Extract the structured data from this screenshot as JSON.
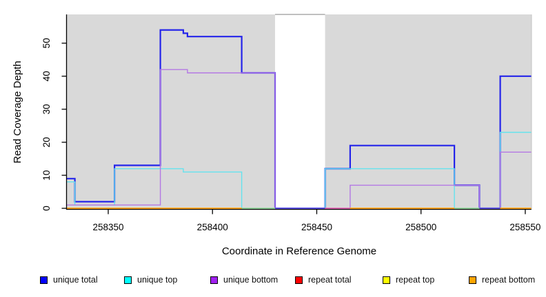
{
  "chart": {
    "y_axis_label": "Read Coverage Depth",
    "x_axis_label": "Coordinate in Reference Genome"
  },
  "chart_data": {
    "type": "line",
    "subtype": "step-post",
    "title": "",
    "xlabel": "Coordinate in Reference Genome",
    "ylabel": "Read Coverage Depth",
    "xlim": [
      258330,
      258553
    ],
    "ylim": [
      0,
      58.7
    ],
    "grid": false,
    "legend_position": "bottom",
    "x_ticks": [
      258350,
      258400,
      258450,
      258500,
      258550
    ],
    "x_tick_labels": [
      "258350",
      "258400",
      "258450",
      "258500",
      "258550"
    ],
    "y_ticks": [
      0,
      10,
      20,
      30,
      40,
      50
    ],
    "y_tick_labels": [
      "0",
      "10",
      "20",
      "30",
      "40",
      "50"
    ],
    "background_bands": [
      {
        "x1": 258330,
        "x2": 258430,
        "color": "#D9D9D9"
      },
      {
        "x1": 258430,
        "x2": 258454,
        "color": "#FFFFFF"
      },
      {
        "x1": 258454,
        "x2": 258553,
        "color": "#D9D9D9"
      }
    ],
    "band_top_border_color": "#999999",
    "series": [
      {
        "name": "unique total",
        "line_color": "#2424EA",
        "line_width": 2.2,
        "points": [
          [
            258330,
            9
          ],
          [
            258334,
            2
          ],
          [
            258353,
            13
          ],
          [
            258375,
            54
          ],
          [
            258386,
            53
          ],
          [
            258388,
            52
          ],
          [
            258414,
            41
          ],
          [
            258430,
            0
          ],
          [
            258454,
            12
          ],
          [
            258466,
            19
          ],
          [
            258516,
            7
          ],
          [
            258528,
            0
          ],
          [
            258538,
            40
          ],
          [
            258553,
            40
          ]
        ]
      },
      {
        "name": "unique top",
        "line_color": "#63E3EE",
        "line_width": 1.4,
        "points": [
          [
            258330,
            8
          ],
          [
            258334,
            1
          ],
          [
            258353,
            12
          ],
          [
            258386,
            11
          ],
          [
            258414,
            0
          ],
          [
            258454,
            12
          ],
          [
            258516,
            0
          ],
          [
            258538,
            23
          ],
          [
            258553,
            23
          ]
        ]
      },
      {
        "name": "unique bottom",
        "line_color": "#B478E4",
        "line_width": 1.4,
        "points": [
          [
            258330,
            1
          ],
          [
            258375,
            42
          ],
          [
            258388,
            41
          ],
          [
            258430,
            0
          ],
          [
            258466,
            7
          ],
          [
            258528,
            0
          ],
          [
            258538,
            17
          ],
          [
            258553,
            17
          ]
        ]
      },
      {
        "name": "repeat total",
        "line_color": "#E00000",
        "line_width": 1.4,
        "points": [
          [
            258330,
            0
          ],
          [
            258553,
            0
          ]
        ]
      },
      {
        "name": "repeat top",
        "line_color": "#FFFF00",
        "line_width": 1.4,
        "points": [
          [
            258330,
            0
          ],
          [
            258553,
            0
          ]
        ]
      },
      {
        "name": "repeat bottom",
        "line_color": "#FFA500",
        "line_width": 2,
        "points": [
          [
            258330,
            0
          ],
          [
            258553,
            0
          ]
        ]
      }
    ],
    "baseline_segments": [
      {
        "x1": 258330,
        "x2": 258414,
        "color": "#FFA500"
      },
      {
        "x1": 258414,
        "x2": 258430,
        "color": "#96D8A0"
      },
      {
        "x1": 258430,
        "x2": 258454,
        "color": "#5A50E6"
      },
      {
        "x1": 258454,
        "x2": 258466,
        "color": "#E06AB4"
      },
      {
        "x1": 258466,
        "x2": 258516,
        "color": "#FFA500"
      },
      {
        "x1": 258516,
        "x2": 258528,
        "color": "#96D8A0"
      },
      {
        "x1": 258528,
        "x2": 258538,
        "color": "#5A50E6"
      },
      {
        "x1": 258538,
        "x2": 258553,
        "color": "#FFA500"
      }
    ]
  },
  "legend": {
    "items": [
      {
        "label": "unique total",
        "swatch_color": "#0000FF"
      },
      {
        "label": "unique top",
        "swatch_color": "#00FFFF"
      },
      {
        "label": "unique bottom",
        "swatch_color": "#A020F0"
      },
      {
        "label": "repeat total",
        "swatch_color": "#FF0000"
      },
      {
        "label": "repeat top",
        "swatch_color": "#FFFF00"
      },
      {
        "label": "repeat bottom",
        "swatch_color": "#FFA500"
      }
    ]
  }
}
